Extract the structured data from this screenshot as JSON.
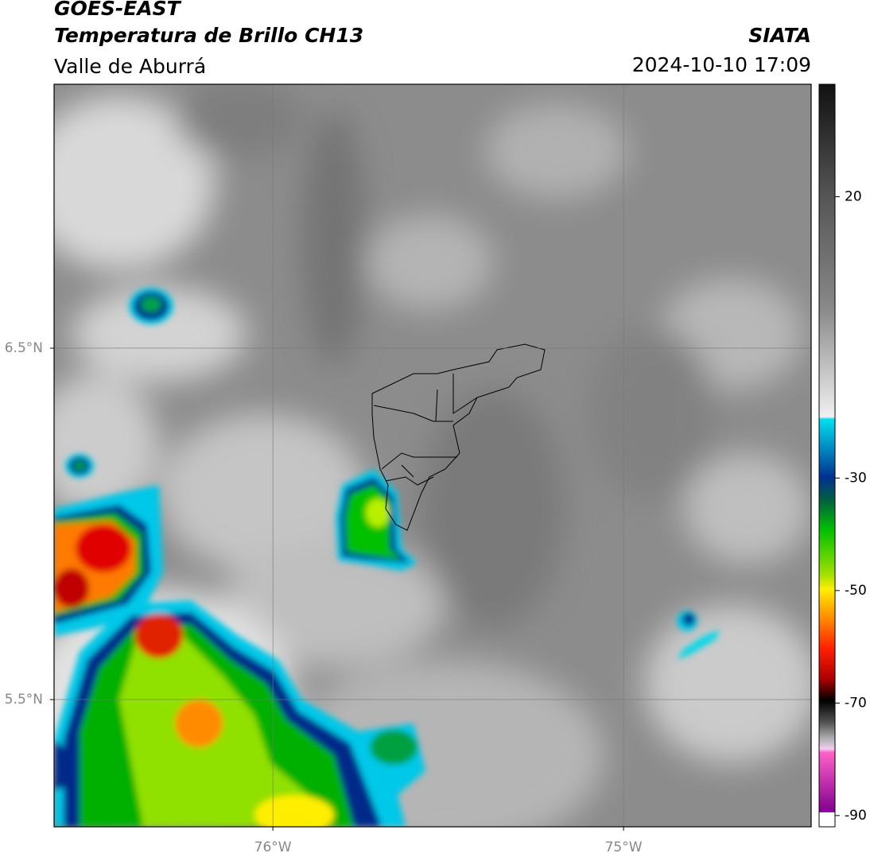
{
  "header": {
    "title": "GOES-EAST",
    "subtitle": "Temperatura de Brillo CH13",
    "region": "Valle de Aburrá",
    "source": "SIATA",
    "timestamp": "2024-10-10 17:09"
  },
  "map": {
    "xlim": [
      -76.624,
      -74.465
    ],
    "ylim": [
      5.138,
      7.251
    ],
    "xticks": [
      {
        "value": -76,
        "label": "76°W"
      },
      {
        "value": -75,
        "label": "75°W"
      }
    ],
    "yticks": [
      {
        "value": 6.5,
        "label": "6.5°N"
      },
      {
        "value": 5.5,
        "label": "5.5°N"
      }
    ]
  },
  "colorbar": {
    "lim": [
      -92,
      40
    ],
    "ticks": [
      20,
      -30,
      -50,
      -70,
      -90
    ]
  }
}
